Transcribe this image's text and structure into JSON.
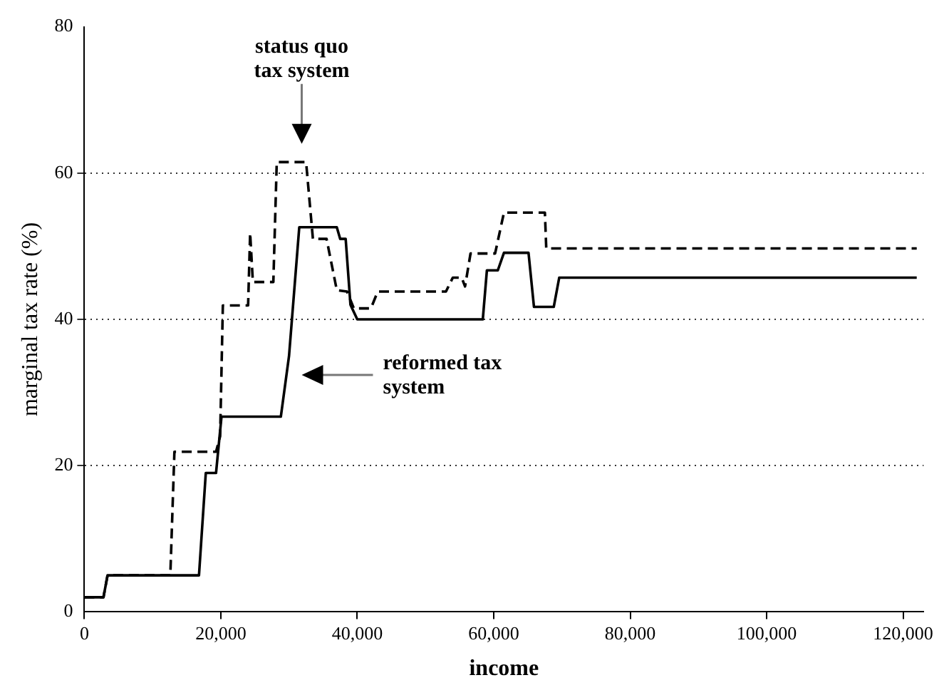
{
  "chart_data": {
    "type": "line",
    "xlabel": "income",
    "ylabel": "marginal tax rate (%)",
    "xlim": [
      0,
      123000
    ],
    "ylim": [
      0,
      80
    ],
    "xticks": [
      0,
      {
        "value": 20000,
        "label": "20,000"
      },
      {
        "value": 40000,
        "label": "40,000"
      },
      {
        "value": 60000,
        "label": "60,000"
      },
      {
        "value": 80000,
        "label": "80,000"
      },
      {
        "value": 100000,
        "label": "100,000"
      },
      {
        "value": 120000,
        "label": "120,000"
      }
    ],
    "yticks": [
      0,
      20,
      40,
      60,
      80
    ],
    "grid": "y",
    "legend": false,
    "marker": "none",
    "series": [
      {
        "color": "#000000",
        "line_style": "dashed",
        "x": [
          0,
          2800,
          3400,
          12600,
          13200,
          19300,
          19900,
          20300,
          24000,
          24300,
          24700,
          27700,
          28200,
          32500,
          33500,
          35500,
          37000,
          38500,
          39500,
          42000,
          43000,
          53000,
          54000,
          55300,
          55800,
          56600,
          60200,
          61500,
          67500,
          67700,
          122000
        ],
        "values": [
          2,
          2,
          5,
          5,
          21.9,
          21.9,
          24,
          41.9,
          41.9,
          51.8,
          45.1,
          45.1,
          61.5,
          61.5,
          51,
          51,
          44,
          43.8,
          41.5,
          41.5,
          43.8,
          43.8,
          45.7,
          45.7,
          44.5,
          49,
          49,
          54.6,
          54.6,
          49.7,
          49.7
        ]
      },
      {
        "color": "#000000",
        "line_style": "solid",
        "x": [
          0,
          2800,
          3400,
          16800,
          17800,
          19300,
          20100,
          28800,
          30000,
          31500,
          37000,
          37500,
          38300,
          39000,
          40000,
          58400,
          59000,
          60600,
          61500,
          65100,
          65900,
          68800,
          69600,
          122000
        ],
        "values": [
          2,
          2,
          5,
          5,
          19,
          19,
          26.7,
          26.7,
          35,
          52.6,
          52.6,
          51,
          51,
          42,
          40,
          40,
          46.7,
          46.7,
          49.1,
          49.1,
          41.7,
          41.7,
          45.7,
          45.7
        ]
      }
    ],
    "annotations": [
      "status quo\ntax system",
      "reformed tax\nsystem"
    ]
  }
}
